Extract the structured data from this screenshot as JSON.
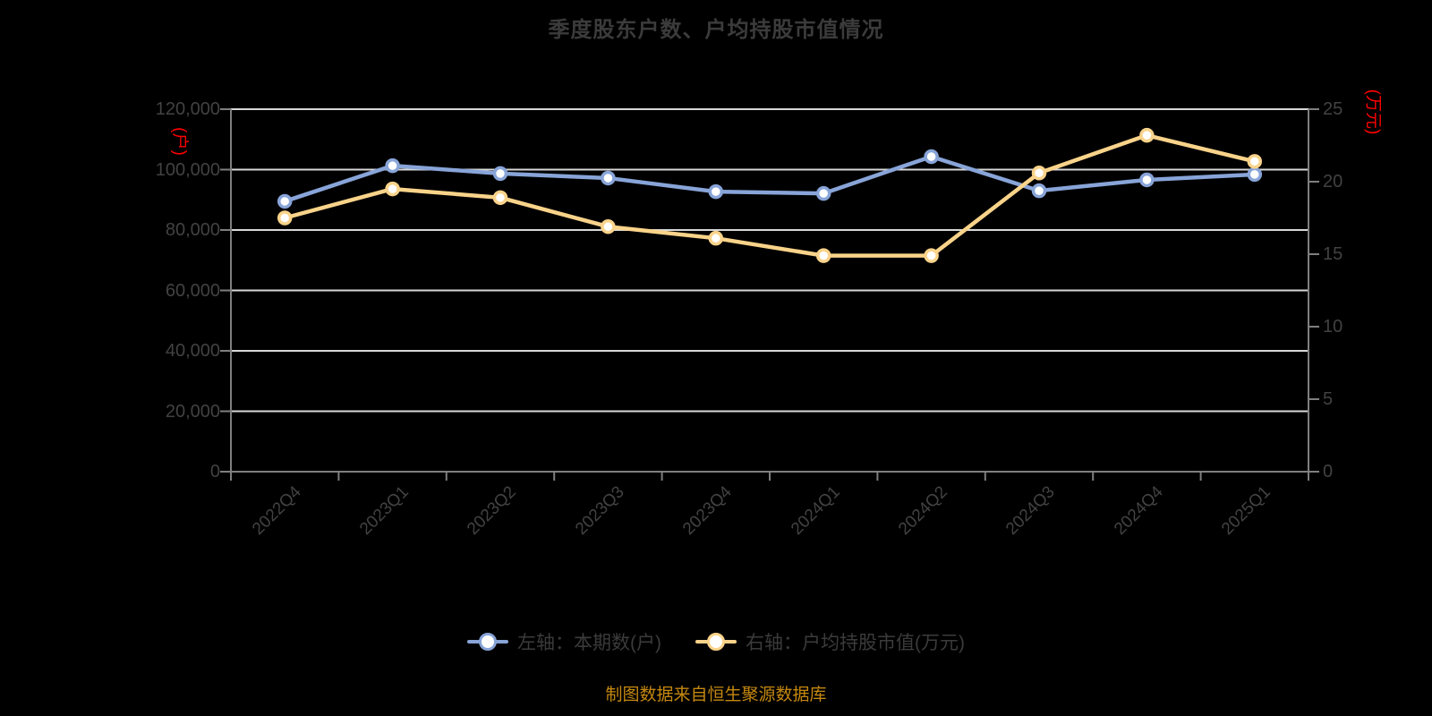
{
  "title": "季度股东户数、户均持股市值情况",
  "footer": "制图数据来自恒生聚源数据库",
  "colors": {
    "background": "#000000",
    "title_text": "#3B3B3B",
    "axis_label_text": "#424242",
    "axis_line": "#7F7F7F",
    "gridline": "#D8D8D8",
    "unit_label_red": "#FF0000",
    "series_holders_blue": "#88A4D8",
    "series_marketvalue_yellow": "#F9D38A",
    "marker_fill": "#FFFFFF",
    "legend_text": "#3B3B3B",
    "footer_text": "#C48810"
  },
  "left_axis": {
    "unit": "(户)",
    "tick_labels": [
      "120,000",
      "100,000",
      "80,000",
      "60,000",
      "40,000",
      "20,000",
      "0"
    ]
  },
  "right_axis": {
    "unit": "(万元)",
    "tick_labels": [
      "25",
      "20",
      "15",
      "10",
      "5",
      "0"
    ]
  },
  "legend": [
    {
      "label": "左轴：本期数(户)",
      "color": "#88A4D8"
    },
    {
      "label": "右轴：户均持股市值(万元)",
      "color": "#F9D38A"
    }
  ],
  "chart_data": {
    "type": "line",
    "title": "季度股东户数、户均持股市值情况",
    "categories": [
      "2022Q4",
      "2023Q1",
      "2023Q2",
      "2023Q3",
      "2023Q4",
      "2024Q1",
      "2024Q2",
      "2024Q3",
      "2024Q4",
      "2025Q1"
    ],
    "series": [
      {
        "name": "左轴：本期数(户)",
        "axis": "left",
        "color": "#88A4D8",
        "values": [
          89500,
          101300,
          98700,
          97200,
          92700,
          92100,
          104300,
          93000,
          96600,
          98400
        ]
      },
      {
        "name": "右轴：户均持股市值(万元)",
        "axis": "right",
        "color": "#F9D38A",
        "values": [
          17.5,
          19.5,
          18.9,
          16.9,
          16.1,
          14.9,
          14.9,
          20.6,
          23.2,
          21.4
        ]
      }
    ],
    "left_ylim": [
      0,
      120000
    ],
    "right_ylim": [
      0,
      25
    ],
    "grid": true,
    "legend_position": "bottom",
    "x_label_rotation": -45
  }
}
